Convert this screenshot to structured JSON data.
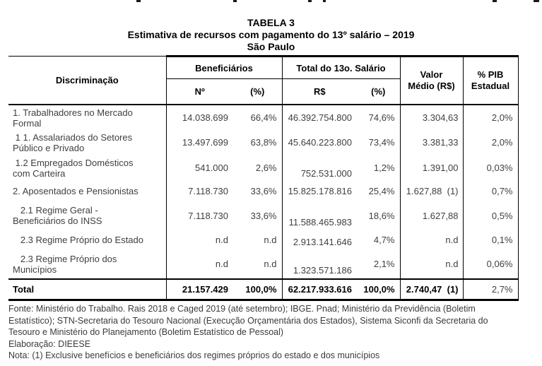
{
  "title": {
    "line1": "TABELA 3",
    "line2": "Estimativa de recursos com pagamento do 13º salário – 2019",
    "line3": "São Paulo"
  },
  "table": {
    "header": {
      "discriminacao": "Discriminação",
      "beneficiarios_group": "Beneficiários",
      "total_13_group": "Total do 13o. Salário",
      "valor_medio": "Valor\nMédio (R$)",
      "pib_estadual": "% PIB\nEstadual",
      "sub_numero": "Nº",
      "sub_benef_pct": "(%)",
      "sub_rs": "R$",
      "sub_salario_pct": "(%)"
    },
    "rows": [
      {
        "label": "1. Trabalhadores no Mercado\nFormal",
        "benef_n": "14.038.699",
        "benef_pct": "66,4%",
        "salario_rs": "46.392.754.800",
        "salario_pct": "74,6%",
        "valor_medio": "3.304,63",
        "pib": "2,0%",
        "rs_offset": false
      },
      {
        "label": " 1 1. Assalariados do Setores\nPúblico e Privado",
        "benef_n": "13.497.699",
        "benef_pct": "63,8%",
        "salario_rs": "45.640.223.800",
        "salario_pct": "73,4%",
        "valor_medio": "3.381,33",
        "pib": "2,0%",
        "rs_offset": false
      },
      {
        "label": " 1.2 Empregados Domésticos\ncom Carteira",
        "benef_n": "541.000",
        "benef_pct": "2,6%",
        "salario_rs": "752.531.000",
        "salario_pct": "1,2%",
        "valor_medio": "1.391,00",
        "pib": "0,03%",
        "rs_offset": true
      },
      {
        "label": "2. Aposentados e Pensionistas",
        "benef_n": "7.118.730",
        "benef_pct": "33,6%",
        "salario_rs": "15.825.178.816",
        "salario_pct": "25,4%",
        "valor_medio": "1.627,88  (1)",
        "pib": "0,7%",
        "rs_offset": false
      },
      {
        "label": "   2.1 Regime Geral -\nBeneficiários do INSS",
        "benef_n": "7.118.730",
        "benef_pct": "33,6%",
        "salario_rs": "11.588.465.983",
        "salario_pct": "18,6%",
        "valor_medio": "1.627,88",
        "pib": "0,5%",
        "rs_offset": true
      },
      {
        "label": "   2.3 Regime Próprio do Estado",
        "benef_n": "n.d",
        "benef_pct": "n.d",
        "salario_rs": "2.913.141.646",
        "salario_pct": "4,7%",
        "valor_medio": "n.d",
        "pib": "0,1%",
        "rs_offset": true
      },
      {
        "label": "   2.3 Regime Próprio dos\nMunicípios",
        "benef_n": "n.d",
        "benef_pct": "n.d",
        "salario_rs": "1.323.571.186",
        "salario_pct": "2,1%",
        "valor_medio": "n.d",
        "pib": "0,06%",
        "rs_offset": true
      }
    ],
    "total_row": {
      "label": "Total",
      "benef_n": "21.157.429",
      "benef_pct": "100,0%",
      "salario_rs": "62.217.933.616",
      "salario_pct": "100,0%",
      "valor_medio": "2.740,47  (1)",
      "pib": "2,7%"
    }
  },
  "footer": {
    "fonte": "Fonte: Ministério do Trabalho. Rais 2018 e Caged 2019 (até setembro); IBGE. Pnad; Ministério da Previdência (Boletim\nEstatístico); STN-Secretaria do Tesouro Nacional (Execução Orçamentária dos Estados), Sistema Siconfi da Secretaria do\nTesouro e Ministério do Planejamento (Boletim Estatístico de Pessoal)",
    "elaboracao": "Elaboração: DIEESE",
    "nota": "Nota: (1) Exclusive benefícios e beneficiários dos regimes próprios do estado e dos municípios"
  }
}
